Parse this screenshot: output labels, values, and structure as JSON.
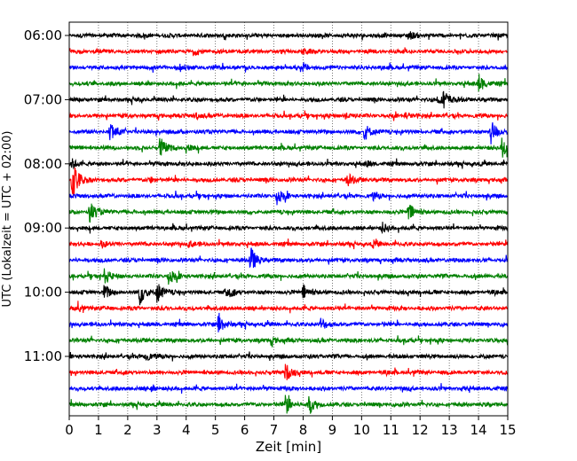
{
  "chart_data": {
    "type": "line",
    "title": "",
    "xlabel": "Zeit  [min]",
    "ylabel": "UTC (Lokalzeit = UTC + 02:00)",
    "xlim": [
      0,
      15
    ],
    "x_ticks": [
      "0",
      "1",
      "2",
      "3",
      "4",
      "5",
      "6",
      "7",
      "8",
      "9",
      "10",
      "11",
      "12",
      "13",
      "14",
      "15"
    ],
    "y_ticks": [
      {
        "label": "06:00",
        "row": 0
      },
      {
        "label": "07:00",
        "row": 4
      },
      {
        "label": "08:00",
        "row": 8
      },
      {
        "label": "09:00",
        "row": 12
      },
      {
        "label": "10:00",
        "row": 16
      },
      {
        "label": "11:00",
        "row": 20
      }
    ],
    "grid": "vertical dotted",
    "trace_colors": [
      "#000000",
      "#ff0000",
      "#0000ff",
      "#008000"
    ],
    "rows": [
      {
        "start": "06:00",
        "events": [
          {
            "t": 11.6,
            "a": 0.5
          }
        ]
      },
      {
        "start": "06:15",
        "events": [
          {
            "t": 4.3,
            "a": 0.3
          },
          {
            "t": 8.0,
            "a": 0.3
          }
        ]
      },
      {
        "start": "06:30",
        "events": [
          {
            "t": 3.8,
            "a": 0.35
          },
          {
            "t": 8.0,
            "a": 0.4
          }
        ]
      },
      {
        "start": "06:45",
        "events": [
          {
            "t": 14.0,
            "a": 1.3
          }
        ]
      },
      {
        "start": "07:00",
        "events": [
          {
            "t": 12.8,
            "a": 1.3
          },
          {
            "t": 12.6,
            "a": 0.5
          }
        ]
      },
      {
        "start": "07:15",
        "events": [
          {
            "t": 4.3,
            "a": 0.5
          },
          {
            "t": 9.4,
            "a": 0.4
          },
          {
            "t": 11.5,
            "a": 0.35
          }
        ]
      },
      {
        "start": "07:30",
        "events": [
          {
            "t": 1.4,
            "a": 1.4
          },
          {
            "t": 10.1,
            "a": 1.2
          },
          {
            "t": 14.4,
            "a": 1.8
          }
        ]
      },
      {
        "start": "07:45",
        "events": [
          {
            "t": 3.1,
            "a": 1.4
          },
          {
            "t": 4.0,
            "a": 0.4
          },
          {
            "t": 14.8,
            "a": 1.8
          }
        ]
      },
      {
        "start": "08:00",
        "events": [
          {
            "t": 0.1,
            "a": 0.5
          },
          {
            "t": 10.2,
            "a": 0.35
          }
        ]
      },
      {
        "start": "08:15",
        "events": [
          {
            "t": 0.1,
            "a": 3.2
          },
          {
            "t": 9.5,
            "a": 0.9
          },
          {
            "t": 2.8,
            "a": 0.3
          }
        ]
      },
      {
        "start": "08:30",
        "events": [
          {
            "t": 7.1,
            "a": 1.1
          },
          {
            "t": 10.4,
            "a": 0.4
          }
        ]
      },
      {
        "start": "08:45",
        "events": [
          {
            "t": 0.7,
            "a": 1.4
          },
          {
            "t": 11.6,
            "a": 1.3
          }
        ]
      },
      {
        "start": "09:00",
        "events": [
          {
            "t": 10.7,
            "a": 0.6
          }
        ]
      },
      {
        "start": "09:15",
        "events": [
          {
            "t": 1.1,
            "a": 0.4
          },
          {
            "t": 4.1,
            "a": 0.35
          },
          {
            "t": 10.4,
            "a": 0.35
          }
        ]
      },
      {
        "start": "09:30",
        "events": [
          {
            "t": 6.2,
            "a": 1.7
          }
        ]
      },
      {
        "start": "09:45",
        "events": [
          {
            "t": 1.2,
            "a": 0.9
          },
          {
            "t": 3.4,
            "a": 1.1
          }
        ]
      },
      {
        "start": "10:00",
        "events": [
          {
            "t": 1.2,
            "a": 1.0
          },
          {
            "t": 2.4,
            "a": 1.7
          },
          {
            "t": 3.0,
            "a": 1.4
          },
          {
            "t": 5.4,
            "a": 1.0
          },
          {
            "t": 8.0,
            "a": 1.0
          }
        ]
      },
      {
        "start": "10:15",
        "events": [
          {
            "t": 0.3,
            "a": 0.4
          }
        ]
      },
      {
        "start": "10:30",
        "events": [
          {
            "t": 5.1,
            "a": 1.4
          },
          {
            "t": 8.6,
            "a": 0.8
          }
        ]
      },
      {
        "start": "10:45",
        "events": [
          {
            "t": 6.9,
            "a": 0.5
          }
        ]
      },
      {
        "start": "11:00",
        "events": [
          {
            "t": 2.6,
            "a": 0.6
          }
        ]
      },
      {
        "start": "11:15",
        "events": [
          {
            "t": 7.4,
            "a": 1.2
          }
        ]
      },
      {
        "start": "11:30",
        "events": [
          {
            "t": 2.8,
            "a": 0.3
          }
        ]
      },
      {
        "start": "11:45",
        "events": [
          {
            "t": 7.4,
            "a": 1.3
          },
          {
            "t": 8.2,
            "a": 1.2
          }
        ]
      }
    ]
  }
}
